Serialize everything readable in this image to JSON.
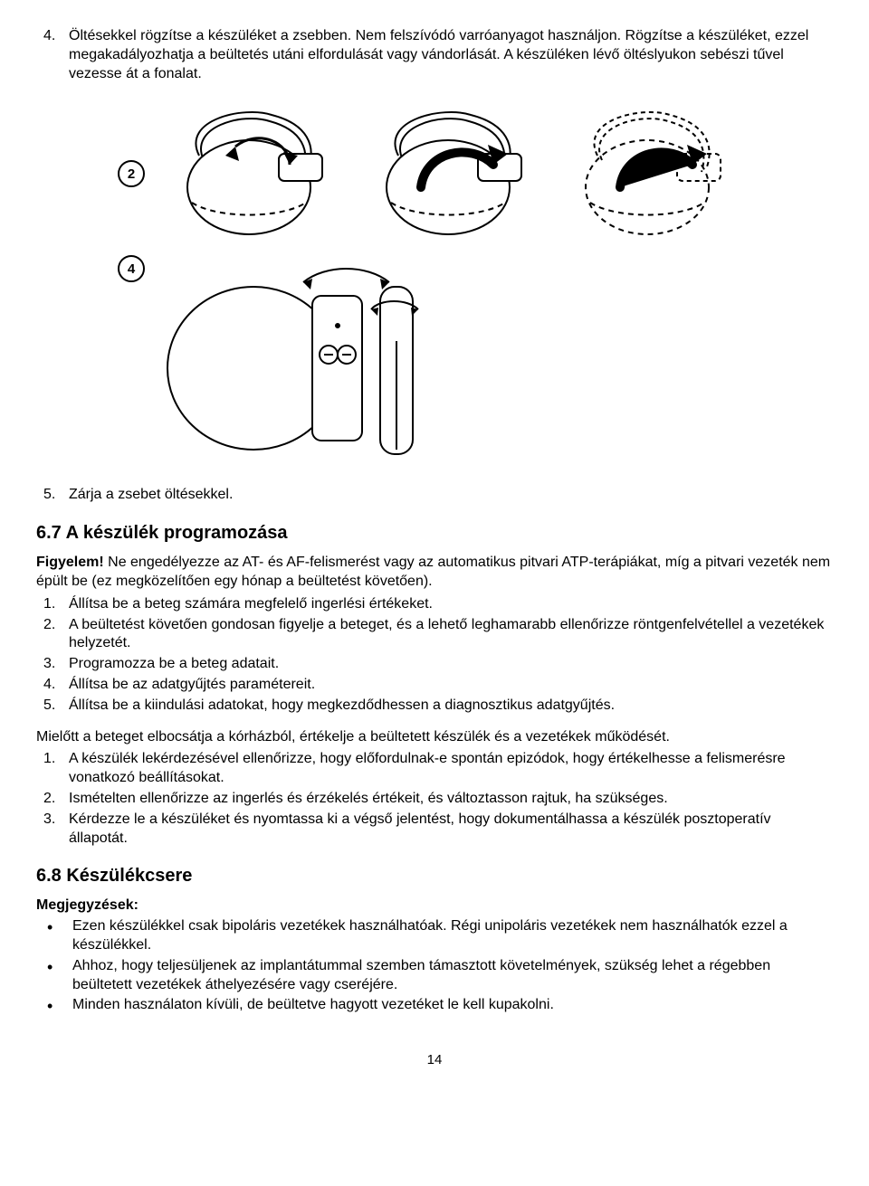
{
  "step4": {
    "num": "4.",
    "text": "Öltésekkel rögzítse a készüléket a zsebben. Nem felszívódó varróanyagot használjon. Rögzítse a készüléket, ezzel megakadályozhatja a beültetés utáni elfordulását vagy vándorlását. A készüléken lévő öltéslyukon sebészi tűvel vezesse át a fonalat."
  },
  "fig_labels": {
    "n2": "2",
    "n4": "4"
  },
  "step5": {
    "num": "5.",
    "text": "Zárja a zsebet öltésekkel."
  },
  "sec67": {
    "heading": "6.7  A készülék programozása"
  },
  "warn67": {
    "label": "Figyelem!",
    "text": " Ne engedélyezze az AT- és AF-felismerést vagy az automatikus pitvari ATP-terápiákat, míg a pitvari vezeték nem épült be (ez megközelítően egy hónap a beültetést követően)."
  },
  "list67": [
    {
      "n": "1.",
      "t": "Állítsa be a beteg számára megfelelő ingerlési értékeket."
    },
    {
      "n": "2.",
      "t": "A beültetést követően gondosan figyelje a beteget, és a lehető leghamarabb ellenőrizze röntgenfelvétellel a vezetékek helyzetét."
    },
    {
      "n": "3.",
      "t": "Programozza be a beteg adatait."
    },
    {
      "n": "4.",
      "t": "Állítsa be az adatgyűjtés paramétereit."
    },
    {
      "n": "5.",
      "t": "Állítsa be a kiindulási adatokat, hogy megkezdődhessen a diagnosztikus adatgyűjtés."
    }
  ],
  "para67b": "Mielőtt a beteget elbocsátja a kórházból, értékelje a beültetett készülék és a vezetékek működését.",
  "list67b": [
    {
      "n": "1.",
      "t": "A készülék lekérdezésével ellenőrizze, hogy előfordulnak-e spontán epizódok, hogy értékelhesse a felismerésre vonatkozó beállításokat."
    },
    {
      "n": "2.",
      "t": "Ismételten ellenőrizze az ingerlés és érzékelés értékeit, és változtasson rajtuk, ha szükséges."
    },
    {
      "n": "3.",
      "t": "Kérdezze le a készüléket és nyomtassa ki a végső jelentést, hogy dokumentálhassa a készülék posztoperatív állapotát."
    }
  ],
  "sec68": {
    "heading": "6.8  Készülékcsere"
  },
  "notes68_label": "Megjegyzések:",
  "notes68": [
    "Ezen készülékkel csak bipoláris vezetékek használhatóak. Régi unipoláris vezetékek nem használhatók ezzel a készülékkel.",
    "Ahhoz, hogy teljesüljenek az implantátummal szemben támasztott követelmények, szükség lehet a régebben beültetett vezetékek áthelyezésére vagy cseréjére.",
    "Minden használaton kívüli, de beültetve hagyott vezetéket le kell kupakolni."
  ],
  "page": "14"
}
